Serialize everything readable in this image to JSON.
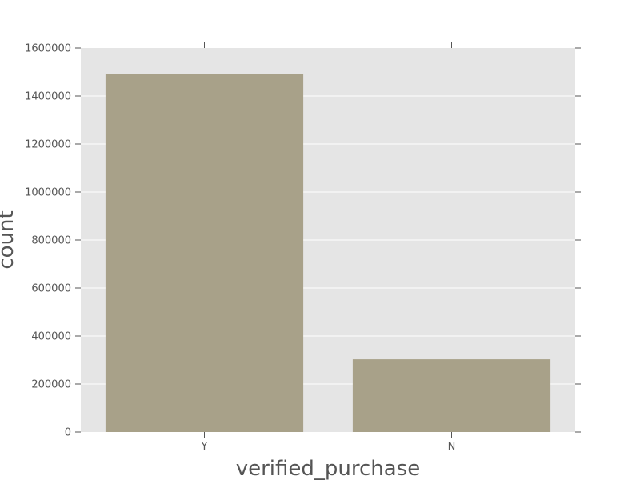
{
  "chart_data": {
    "type": "bar",
    "categories": [
      "Y",
      "N"
    ],
    "values": [
      1490000,
      303000
    ],
    "xlabel": "verified_purchase",
    "ylabel": "count",
    "ylim": [
      0,
      1600000
    ],
    "yticks": [
      "0",
      "200000",
      "400000",
      "600000",
      "800000",
      "1000000",
      "1200000",
      "1400000",
      "1600000"
    ],
    "grid": true,
    "colors": {
      "bar": "#a8a189",
      "plot_background": "#e5e5e5",
      "grid": "#ffffff",
      "text": "#555555",
      "tick": "#555555"
    }
  }
}
